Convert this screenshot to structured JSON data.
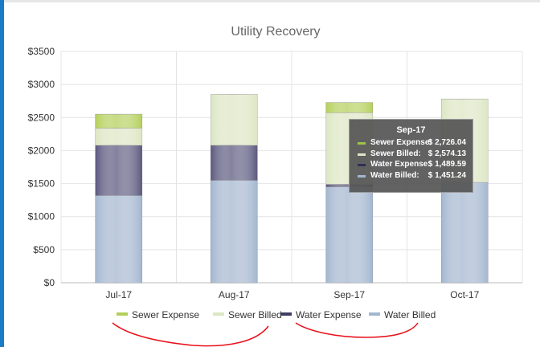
{
  "chart_data": {
    "type": "bar",
    "stacked": true,
    "title": "Utility Recovery",
    "categories": [
      "Jul-17",
      "Aug-17",
      "Sep-17",
      "Oct-17"
    ],
    "y_ticks": [
      "$0",
      "$500",
      "$1000",
      "$1500",
      "$2000",
      "$2500",
      "$3000",
      "$3500"
    ],
    "ylim": [
      0,
      3500
    ],
    "grid": true,
    "legend_position": "bottom",
    "series": [
      {
        "name": "Water Billed",
        "color": "#a3b6cf",
        "values": [
          1320,
          1550,
          1451.24,
          1520
        ]
      },
      {
        "name": "Water Expense",
        "color": "#5a587e",
        "values": [
          760,
          530,
          38.35,
          0
        ]
      },
      {
        "name": "Sewer Billed",
        "color": "#dce6c3",
        "values": [
          260,
          770,
          1084.54,
          1260
        ]
      },
      {
        "name": "Sewer Expense",
        "color": "#b4cf5a",
        "values": [
          210,
          0,
          151.91,
          0
        ]
      }
    ],
    "legend": [
      {
        "label": "Sewer Expense",
        "color": "#b4cf5a"
      },
      {
        "label": "Sewer Billed",
        "color": "#dce6c3"
      },
      {
        "label": "Water Expense",
        "color": "#3f3e62"
      },
      {
        "label": "Water Billed",
        "color": "#a3b6cf"
      }
    ],
    "tooltip": {
      "title": "Sep-17",
      "rows": [
        {
          "label": "Sewer Expense:",
          "value": "$ 2,726.04",
          "color": "#9fc34a"
        },
        {
          "label": "Sewer Billed:",
          "value": "$ 2,574.13",
          "color": "#dce6c3"
        },
        {
          "label": "Water Expense:",
          "value": "$ 1,489.59",
          "color": "#2f2e55"
        },
        {
          "label": "Water Billed:",
          "value": "$ 1,451.24",
          "color": "#a3b6cf"
        }
      ]
    }
  }
}
